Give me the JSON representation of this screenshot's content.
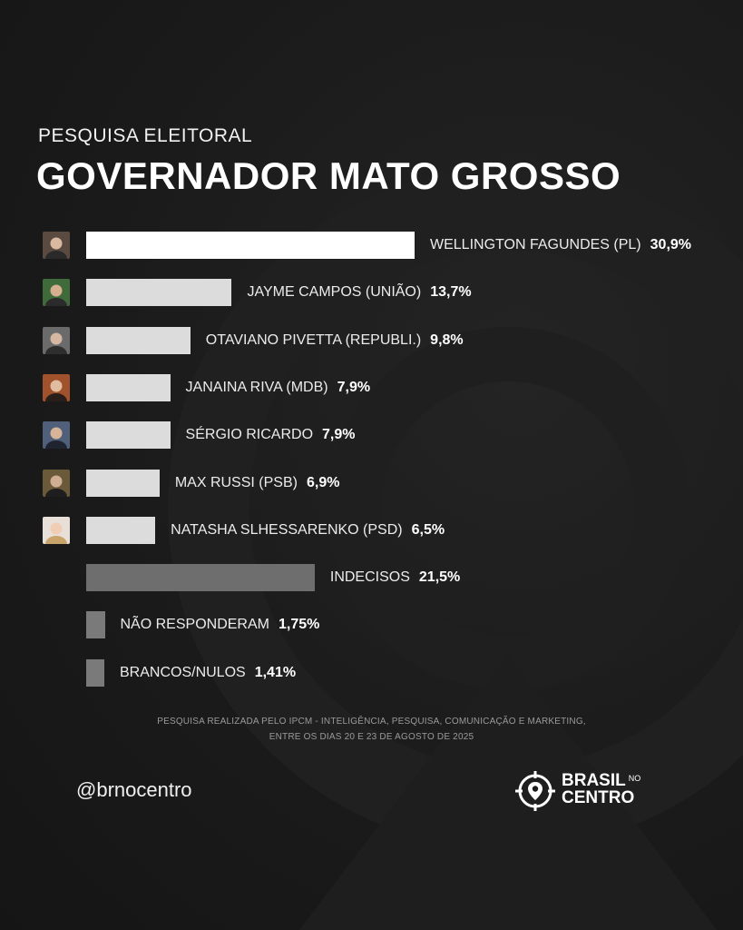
{
  "header": {
    "subtitle": "PESQUISA ELEITORAL",
    "title": "GOVERNADOR MATO GROSSO"
  },
  "colors": {
    "leader_bar": "#ffffff",
    "candidate_bar": "#dcdcdc",
    "undecided_bar": "#6e6e6e",
    "minor_bar": "#7a7a7a",
    "background": "#1c1c1c"
  },
  "chart_data": {
    "type": "bar",
    "orientation": "horizontal",
    "unit": "%",
    "categories": [
      "WELLINGTON FAGUNDES (PL)",
      "JAYME CAMPOS (UNIÃO)",
      "OTAVIANO PIVETTA (REPUBLI.)",
      "JANAINA RIVA (MDB)",
      "SÉRGIO RICARDO",
      "MAX RUSSI (PSB)",
      "NATASHA SLHESSARENKO (PSD)",
      "INDECISOS",
      "NÃO RESPONDERAM",
      "BRANCOS/NULOS"
    ],
    "values": [
      30.9,
      13.7,
      9.8,
      7.9,
      7.9,
      6.9,
      6.5,
      21.5,
      1.75,
      1.41
    ],
    "value_labels": [
      "30,9%",
      "13,7%",
      "9,8%",
      "7,9%",
      "7,9%",
      "6,9%",
      "6,5%",
      "21,5%",
      "1,75%",
      "1,41%"
    ],
    "bar_kind": [
      "leader",
      "candidate",
      "candidate",
      "candidate",
      "candidate",
      "candidate",
      "candidate",
      "undecided",
      "minor",
      "minor"
    ],
    "has_photo": [
      true,
      true,
      true,
      true,
      true,
      true,
      true,
      false,
      false,
      false
    ],
    "xlim": [
      0,
      30.9
    ],
    "grid": false
  },
  "footer": {
    "note_line1": "PESQUISA REALIZADA PELO IPCM - INTELIGÊNCIA, PESQUISA, COMUNICAÇÃO E MARKETING,",
    "note_line2": "ENTRE OS DIAS 20 E 23 DE AGOSTO DE 2025",
    "handle": "@brnocentro",
    "logo_word1": "BRASIL",
    "logo_word_small": "NO",
    "logo_word2": "CENTRO",
    "logo_icon": "location-pin-target-icon"
  }
}
